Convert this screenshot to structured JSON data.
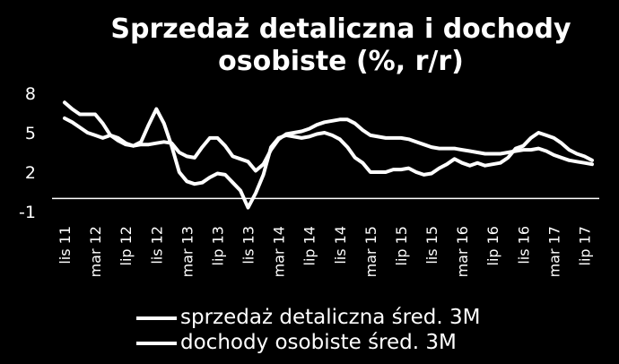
{
  "chart_data": {
    "type": "line",
    "title_line1": "Sprzedaż detaliczna i dochody",
    "title_line2": "osobiste (%, r/r)",
    "xlabel": "",
    "ylabel": "",
    "ylim": [
      -1,
      8
    ],
    "y_ticks": [
      8,
      5,
      2,
      -1
    ],
    "x_tick_labels": [
      "lis 11",
      "mar 12",
      "lip 12",
      "lis 12",
      "mar 13",
      "lip 13",
      "lis 13",
      "mar 14",
      "lip 14",
      "lis 14",
      "mar 15",
      "lip 15",
      "lis 15",
      "mar 16",
      "lip 16",
      "lis 16",
      "mar 17",
      "lip 17"
    ],
    "x": [
      "lis 11",
      "gru 11",
      "sty 12",
      "lut 12",
      "mar 12",
      "kwi 12",
      "maj 12",
      "cze 12",
      "lip 12",
      "sie 12",
      "wrz 12",
      "paź 12",
      "lis 12",
      "gru 12",
      "sty 13",
      "lut 13",
      "mar 13",
      "kwi 13",
      "maj 13",
      "cze 13",
      "lip 13",
      "sie 13",
      "wrz 13",
      "paź 13",
      "lis 13",
      "gru 13",
      "sty 14",
      "lut 14",
      "mar 14",
      "kwi 14",
      "maj 14",
      "cze 14",
      "lip 14",
      "sie 14",
      "wrz 14",
      "paź 14",
      "lis 14",
      "gru 14",
      "sty 15",
      "lut 15",
      "mar 15",
      "kwi 15",
      "maj 15",
      "cze 15",
      "lip 15",
      "sie 15",
      "wrz 15",
      "paź 15",
      "lis 15",
      "gru 15",
      "sty 16",
      "lut 16",
      "mar 16",
      "kwi 16",
      "maj 16",
      "cze 16",
      "lip 16",
      "sie 16",
      "wrz 16",
      "paź 16",
      "lis 16",
      "gru 16",
      "sty 17",
      "lut 17",
      "mar 17",
      "kwi 17",
      "maj 17",
      "cze 17",
      "lip 17",
      "sie 17"
    ],
    "series": [
      {
        "name": "sprzedaż detaliczna śred. 3M",
        "values": [
          7.3,
          6.8,
          6.4,
          6.4,
          6.4,
          5.7,
          4.8,
          4.4,
          4.1,
          4.0,
          4.3,
          5.6,
          6.8,
          5.7,
          4.0,
          2.0,
          1.3,
          1.1,
          1.2,
          1.6,
          1.9,
          1.8,
          1.2,
          0.6,
          -0.7,
          0.4,
          1.8,
          3.9,
          4.6,
          4.8,
          4.7,
          4.6,
          4.7,
          4.9,
          5.0,
          4.8,
          4.5,
          3.9,
          3.1,
          2.7,
          2.0,
          2.0,
          2.0,
          2.2,
          2.2,
          2.3,
          2.0,
          1.8,
          1.9,
          2.3,
          2.6,
          3.0,
          2.7,
          2.5,
          2.7,
          2.5,
          2.6,
          2.7,
          3.1,
          3.8,
          4.0,
          4.6,
          5.0,
          4.8,
          4.6,
          4.2,
          3.7,
          3.4,
          3.2,
          2.9
        ]
      },
      {
        "name": "dochody osobiste śred. 3M",
        "values": [
          6.1,
          5.8,
          5.4,
          5.0,
          4.8,
          4.6,
          4.8,
          4.6,
          4.2,
          4.0,
          4.1,
          4.1,
          4.2,
          4.3,
          4.2,
          3.5,
          3.2,
          3.1,
          3.9,
          4.6,
          4.6,
          4.0,
          3.2,
          3.0,
          2.8,
          2.1,
          2.6,
          3.7,
          4.5,
          4.9,
          5.0,
          5.1,
          5.3,
          5.6,
          5.8,
          5.9,
          6.0,
          6.0,
          5.7,
          5.2,
          4.8,
          4.7,
          4.6,
          4.6,
          4.6,
          4.5,
          4.3,
          4.1,
          3.9,
          3.8,
          3.8,
          3.8,
          3.7,
          3.6,
          3.5,
          3.4,
          3.4,
          3.4,
          3.5,
          3.6,
          3.7,
          3.7,
          3.8,
          3.6,
          3.3,
          3.1,
          2.9,
          2.8,
          2.7,
          2.6
        ]
      }
    ],
    "legend_placement": "bottom",
    "grid": false
  }
}
